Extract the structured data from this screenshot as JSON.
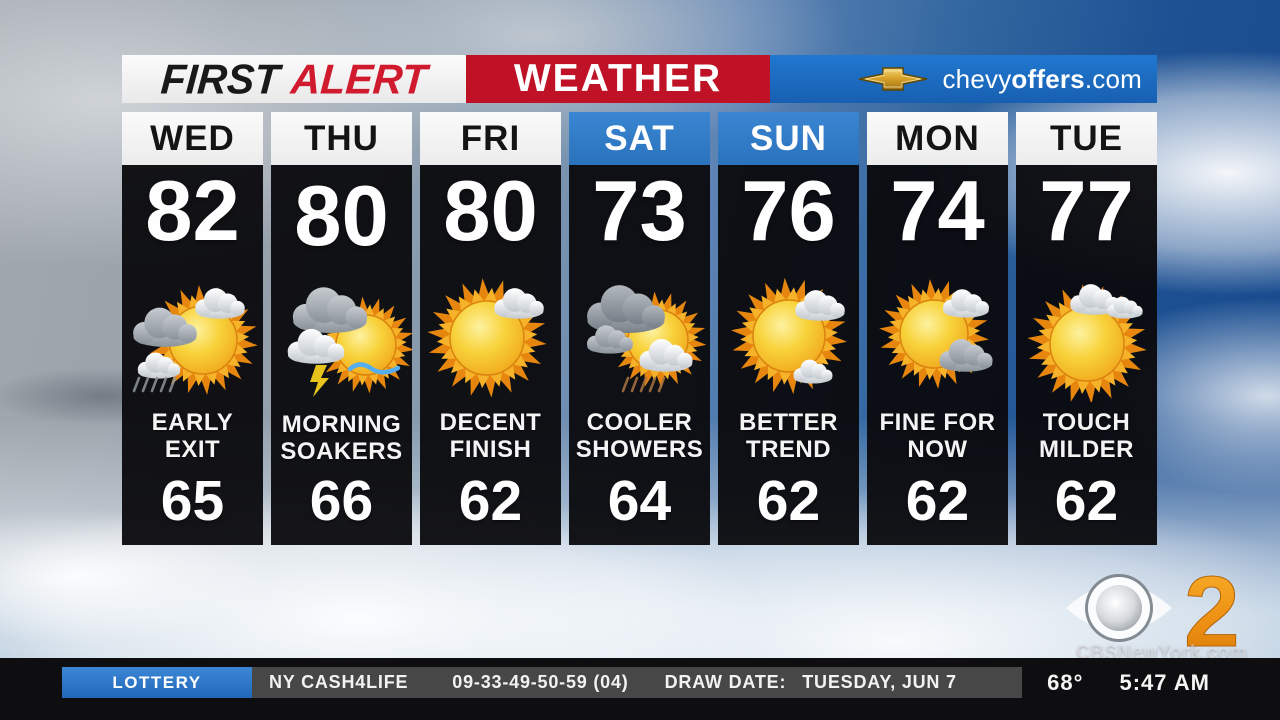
{
  "header": {
    "first": "FIRST",
    "alert": "ALERT",
    "weather": "WEATHER",
    "sponsor": {
      "logo_icon": "chevrolet-bowtie-icon",
      "pre": "chevy",
      "bold": "offers",
      "post": ".com"
    }
  },
  "forecast": {
    "days": [
      {
        "day": "WED",
        "high": "82",
        "low": "65",
        "desc_line1": "EARLY",
        "desc_line2": "EXIT",
        "icon": "sun-clouds-showers-icon",
        "header_style": "white",
        "highlight": false
      },
      {
        "day": "THU",
        "high": "80",
        "low": "66",
        "desc_line1": "MORNING",
        "desc_line2": "SOAKERS",
        "icon": "thunderstorm-sun-icon",
        "header_style": "white",
        "highlight": true
      },
      {
        "day": "FRI",
        "high": "80",
        "low": "62",
        "desc_line1": "DECENT",
        "desc_line2": "FINISH",
        "icon": "mostly-sunny-cloud-icon",
        "header_style": "white",
        "highlight": false
      },
      {
        "day": "SAT",
        "high": "73",
        "low": "64",
        "desc_line1": "COOLER",
        "desc_line2": "SHOWERS",
        "icon": "clouds-showers-sun-icon",
        "header_style": "blue",
        "highlight": false
      },
      {
        "day": "SUN",
        "high": "76",
        "low": "62",
        "desc_line1": "BETTER",
        "desc_line2": "TREND",
        "icon": "sun-two-clouds-icon",
        "header_style": "blue",
        "highlight": false
      },
      {
        "day": "MON",
        "high": "74",
        "low": "62",
        "desc_line1": "FINE FOR",
        "desc_line2": "NOW",
        "icon": "sun-cloud-right-icon",
        "header_style": "white",
        "highlight": false
      },
      {
        "day": "TUE",
        "high": "77",
        "low": "62",
        "desc_line1": "TOUCH",
        "desc_line2": "MILDER",
        "icon": "sun-cloud-top-icon",
        "header_style": "white",
        "highlight": false
      }
    ]
  },
  "ticker": {
    "category": "LOTTERY",
    "game": "NY CASH4LIFE",
    "numbers": "09-33-49-50-59 (04)",
    "draw_label": "DRAW DATE:",
    "draw_value": "TUESDAY, JUN 7",
    "temperature": "68°",
    "time": "5:47 AM"
  },
  "station": {
    "logo_icon": "cbs-eye-icon",
    "channel": "2",
    "watermark": "CBSNewYork.com"
  },
  "colors": {
    "alert_red": "#d01a2e",
    "weather_red": "#bf1226",
    "sponsor_blue": "#1d6fc4",
    "weekend_blue": "#2e7ac4",
    "lottery_blue": "#2b76c9",
    "highlight_gold": "#dfa125",
    "sun_orange": "#ef9a16",
    "channel_orange": "#e8890f"
  }
}
